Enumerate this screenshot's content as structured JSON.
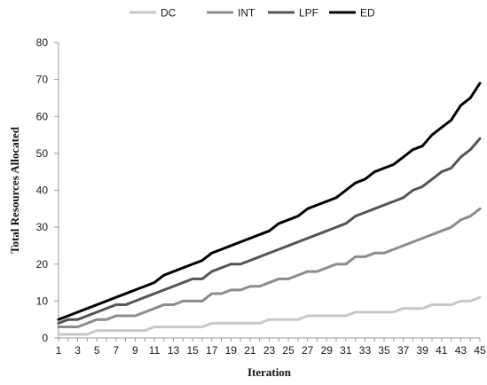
{
  "chart_data": {
    "type": "line",
    "xlabel": "Iteration",
    "ylabel": "Total Resources Allocated",
    "ylim": [
      0,
      80
    ],
    "yticks": [
      0,
      10,
      20,
      30,
      40,
      50,
      60,
      70,
      80
    ],
    "xlim": [
      1,
      45
    ],
    "xticks": [
      1,
      3,
      5,
      7,
      9,
      11,
      13,
      15,
      17,
      19,
      21,
      23,
      25,
      27,
      29,
      31,
      33,
      35,
      37,
      39,
      41,
      43,
      45
    ],
    "grid": false,
    "legend_position": "top",
    "x": [
      1,
      2,
      3,
      4,
      5,
      6,
      7,
      8,
      9,
      10,
      11,
      12,
      13,
      14,
      15,
      16,
      17,
      18,
      19,
      20,
      21,
      22,
      23,
      24,
      25,
      26,
      27,
      28,
      29,
      30,
      31,
      32,
      33,
      34,
      35,
      36,
      37,
      38,
      39,
      40,
      41,
      42,
      43,
      44,
      45
    ],
    "series": [
      {
        "name": "DC",
        "color": "#c8c8c8",
        "values": [
          1,
          1,
          1,
          1,
          2,
          2,
          2,
          2,
          2,
          2,
          3,
          3,
          3,
          3,
          3,
          3,
          4,
          4,
          4,
          4,
          4,
          4,
          5,
          5,
          5,
          5,
          6,
          6,
          6,
          6,
          6,
          7,
          7,
          7,
          7,
          7,
          8,
          8,
          8,
          9,
          9,
          9,
          10,
          10,
          11
        ]
      },
      {
        "name": "INT",
        "color": "#8c8c8c",
        "values": [
          3,
          3,
          3,
          4,
          5,
          5,
          6,
          6,
          6,
          7,
          8,
          9,
          9,
          10,
          10,
          10,
          12,
          12,
          13,
          13,
          14,
          14,
          15,
          16,
          16,
          17,
          18,
          18,
          19,
          20,
          20,
          22,
          22,
          23,
          23,
          24,
          25,
          26,
          27,
          28,
          29,
          30,
          32,
          33,
          35
        ]
      },
      {
        "name": "LPF",
        "color": "#555555",
        "values": [
          4,
          5,
          5,
          6,
          7,
          8,
          9,
          9,
          10,
          11,
          12,
          13,
          14,
          15,
          16,
          16,
          18,
          19,
          20,
          20,
          21,
          22,
          23,
          24,
          25,
          26,
          27,
          28,
          29,
          30,
          31,
          33,
          34,
          35,
          36,
          37,
          38,
          40,
          41,
          43,
          45,
          46,
          49,
          51,
          54
        ]
      },
      {
        "name": "ED",
        "color": "#000000",
        "values": [
          5,
          6,
          7,
          8,
          9,
          10,
          11,
          12,
          13,
          14,
          15,
          17,
          18,
          19,
          20,
          21,
          23,
          24,
          25,
          26,
          27,
          28,
          29,
          31,
          32,
          33,
          35,
          36,
          37,
          38,
          40,
          42,
          43,
          45,
          46,
          47,
          49,
          51,
          52,
          55,
          57,
          59,
          63,
          65,
          69
        ]
      }
    ]
  }
}
